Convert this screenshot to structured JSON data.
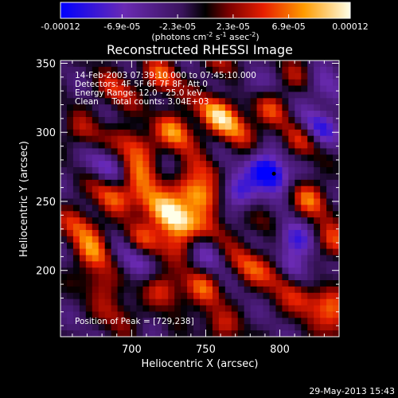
{
  "chart_data": {
    "type": "heatmap",
    "title": "Reconstructed RHESSI Image",
    "colorbar": {
      "ticks": [
        {
          "value": -0.00012,
          "label": "-0.00012"
        },
        {
          "value": -6.9e-05,
          "label": "-6.9e-05"
        },
        {
          "value": -2.3e-05,
          "label": "-2.3e-05"
        },
        {
          "value": 2.3e-05,
          "label": "2.3e-05"
        },
        {
          "value": 6.9e-05,
          "label": "6.9e-05"
        },
        {
          "value": 0.00012,
          "label": "0.00012"
        }
      ],
      "unit_label_prefix": "(photons cm",
      "unit_label_sup1": "-2",
      "unit_label_mid1": " s",
      "unit_label_sup2": "-1",
      "unit_label_mid2": " asec",
      "unit_label_sup3": "-2",
      "unit_label_suffix": ")"
    },
    "x_axis": {
      "label": "Heliocentric X (arcsec)",
      "range": [
        652,
        840
      ],
      "ticks": [
        700,
        750,
        800
      ]
    },
    "y_axis": {
      "label": "Heliocentric Y (arcsec)",
      "range": [
        152,
        352
      ],
      "ticks": [
        200,
        250,
        300,
        350
      ]
    },
    "annotations": [
      "14-Feb-2003 07:39:10.000 to 07:45:10.000",
      "Detectors: 4F 5F 6F 7F 8F, Att 0",
      "Energy Range: 12.0 - 25.0 keV",
      "Clean     Total counts: 3.04E+03"
    ],
    "peak_label": "Position of Peak = [729,238]",
    "peak": [
      729,
      238
    ],
    "blobs": [
      {
        "x": 729,
        "y": 238,
        "a": 1.0
      },
      {
        "x": 744,
        "y": 255,
        "a": 0.82
      },
      {
        "x": 710,
        "y": 252,
        "a": 0.55
      },
      {
        "x": 730,
        "y": 300,
        "a": 0.7
      },
      {
        "x": 703,
        "y": 290,
        "a": 0.55
      },
      {
        "x": 685,
        "y": 255,
        "a": 0.55
      },
      {
        "x": 665,
        "y": 232,
        "a": 0.5
      },
      {
        "x": 756,
        "y": 315,
        "a": 0.66
      },
      {
        "x": 770,
        "y": 303,
        "a": 0.55
      },
      {
        "x": 792,
        "y": 318,
        "a": 0.48
      },
      {
        "x": 815,
        "y": 295,
        "a": 0.45
      },
      {
        "x": 820,
        "y": 252,
        "a": 0.58
      },
      {
        "x": 797,
        "y": 232,
        "a": 0.42
      },
      {
        "x": 778,
        "y": 205,
        "a": 0.52
      },
      {
        "x": 748,
        "y": 188,
        "a": 0.5
      },
      {
        "x": 816,
        "y": 178,
        "a": 0.45
      },
      {
        "x": 722,
        "y": 185,
        "a": 0.5
      },
      {
        "x": 706,
        "y": 222,
        "a": 0.45
      },
      {
        "x": 675,
        "y": 212,
        "a": 0.55
      },
      {
        "x": 690,
        "y": 330,
        "a": 0.45
      },
      {
        "x": 668,
        "y": 300,
        "a": 0.38
      },
      {
        "x": 812,
        "y": 340,
        "a": 0.32
      },
      {
        "x": 837,
        "y": 220,
        "a": 0.5
      },
      {
        "x": 764,
        "y": 348,
        "a": 0.35
      },
      {
        "x": 690,
        "y": 168,
        "a": 0.35
      },
      {
        "x": 760,
        "y": 160,
        "a": 0.4
      },
      {
        "x": 720,
        "y": 340,
        "a": 0.55
      },
      {
        "x": 705,
        "y": 270,
        "a": 0.4
      },
      {
        "x": 800,
        "y": 195,
        "a": 0.45
      },
      {
        "x": 835,
        "y": 175,
        "a": 0.4
      },
      {
        "x": 678,
        "y": 190,
        "a": 0.35
      },
      {
        "x": 752,
        "y": 270,
        "a": 0.4
      },
      {
        "x": 838,
        "y": 160,
        "a": 0.35
      },
      {
        "x": 755,
        "y": 230,
        "a": 0.35
      },
      {
        "x": 730,
        "y": 220,
        "a": 0.4
      }
    ],
    "negatives": [
      {
        "x": 793,
        "y": 270,
        "a": -0.95
      },
      {
        "x": 807,
        "y": 225,
        "a": -0.7
      },
      {
        "x": 825,
        "y": 303,
        "a": -0.55
      },
      {
        "x": 770,
        "y": 258,
        "a": -0.55
      },
      {
        "x": 700,
        "y": 208,
        "a": -0.4
      },
      {
        "x": 682,
        "y": 275,
        "a": -0.4
      },
      {
        "x": 810,
        "y": 200,
        "a": -0.45
      },
      {
        "x": 830,
        "y": 332,
        "a": -0.4
      },
      {
        "x": 780,
        "y": 335,
        "a": -0.35
      },
      {
        "x": 752,
        "y": 212,
        "a": -0.35
      }
    ]
  },
  "footer": {
    "date": "29-May-2013 15:43"
  }
}
